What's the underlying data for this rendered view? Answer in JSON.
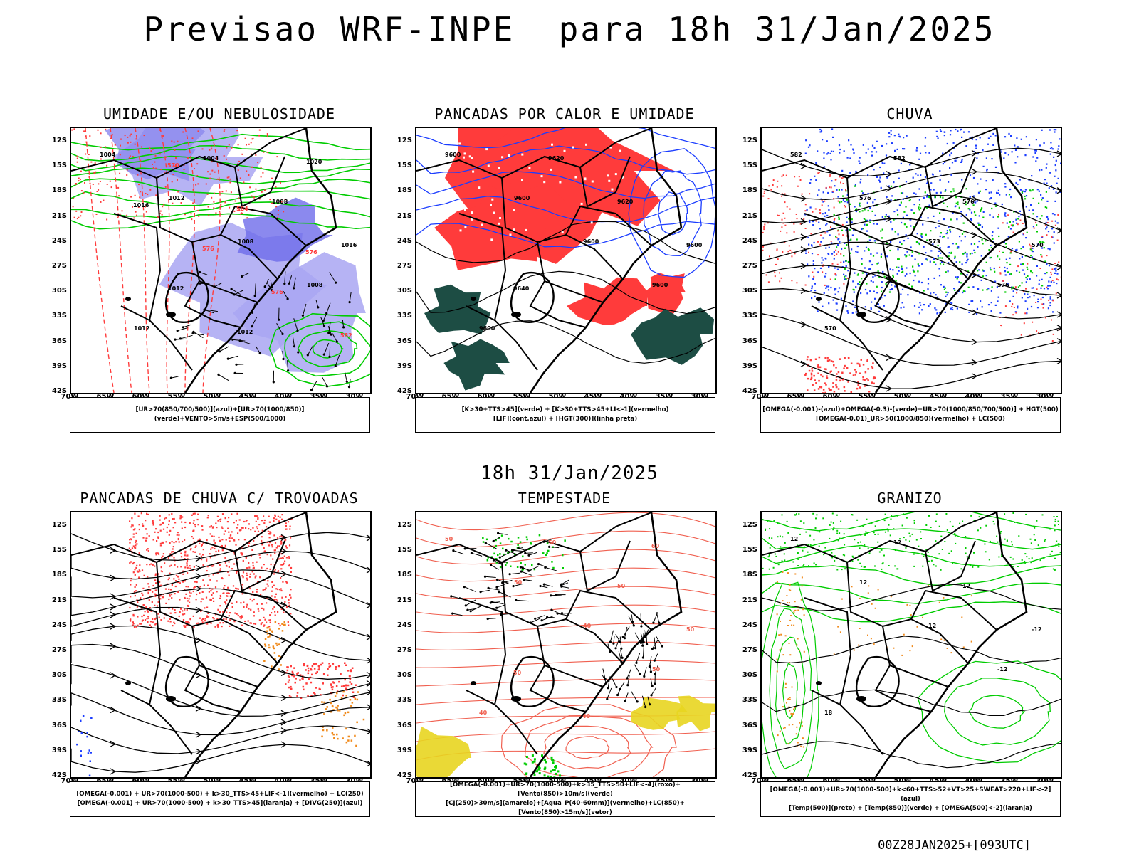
{
  "main_title": "Previsao WRF-INPE  para 18h 31/Jan/2025",
  "mid_title": "18h 31/Jan/2025",
  "footer": "00Z28JAN2025+[093UTC]",
  "axis": {
    "y_labels": [
      "12S",
      "15S",
      "18S",
      "21S",
      "24S",
      "27S",
      "30S",
      "33S",
      "36S",
      "39S",
      "42S"
    ],
    "x_labels": [
      "70W",
      "65W",
      "60W",
      "55W",
      "50W",
      "45W",
      "40W",
      "35W",
      "30W"
    ]
  },
  "colors": {
    "red": "#ff3b3b",
    "green": "#00cc00",
    "blue": "#1a3cff",
    "lavender": "#a9a6f2",
    "orange": "#f08a1c",
    "yellow": "#e8d520",
    "darkgreen": "#1d4d44",
    "salmon": "#f06050"
  },
  "panels": [
    {
      "title": "UMIDADE E/OU NEBULOSIDADE",
      "legend": [
        "[UR>70(850/700/500)](azul)+[UR>70(1000/850)](verde)+VENTO>5m/s+ESP(500/1000)"
      ],
      "labels": [
        "1004",
        "1012",
        "1008",
        "1008",
        "1012",
        "1004",
        "1008",
        "1016",
        "1012",
        "1012",
        "1020",
        "1016",
        "576",
        "576",
        "582",
        "570",
        "584",
        "576"
      ]
    },
    {
      "title": "PANCADAS POR CALOR E UMIDADE",
      "legend": [
        "[K>30+TTS>45](verde) + [K>30+TTS>45+LI<-1](vermelho)",
        "[LIF](cont.azul) + [HGT(300)](linha preta)"
      ],
      "labels": [
        "9600",
        "9600",
        "9600",
        "9600",
        "9600",
        "9620",
        "9620",
        "9600",
        "9640"
      ]
    },
    {
      "title": "CHUVA",
      "legend": [
        "[OMEGA(-0.001)-(azul)+OMEGA(-0.3)-(verde)+UR>70(1000/850/700/500)] + HGT(500)",
        "[OMEGA(-0.01)_UR>50(1000/850)(vermelho) + LC(500)"
      ],
      "labels": [
        "582",
        "576",
        "573",
        "576",
        "570",
        "582",
        "576",
        "570"
      ]
    },
    {
      "title": "PANCADAS DE CHUVA C/ TROVOADAS",
      "legend": [
        "[OMEGA(-0.001) + UR>70(1000-500) + k>30_TTS>45+LIF<-1](vermelho) + LC(250)",
        "[OMEGA(-0.001) + UR>70(1000-500) + k>30_TTS>45](laranja) + [DIVG(250)](azul)"
      ],
      "labels": []
    },
    {
      "title": "TEMPESTADE",
      "legend": [
        "[OMEGA(-0.001)+UR>70(1000-500)+k>35_TTS>50+LIF<-4](roxo)+[Vento(850)>10m/s](verde)",
        "[CJ(250)>30m/s](amarelo)+[Agua_P(40-60mm)](vermelho)+LC(850)+[Vento(850)>15m/s](vetor)"
      ],
      "labels": [
        "50",
        "50",
        "40",
        "50",
        "40",
        "50",
        "50",
        "50",
        "50",
        "40",
        "60"
      ]
    },
    {
      "title": "GRANIZO",
      "legend": [
        "[OMEGA(-0.001)+UR>70(1000-500)+k<60+TTS>52+VT>25+SWEAT>220+LIF<-2](azul)",
        "[Temp(500)](preto) + [Temp(850)](verde) + [OMEGA(500)<-2](laranja)"
      ],
      "labels": [
        "12",
        "12",
        "12",
        "-12",
        "18",
        "12",
        "12",
        "-12"
      ]
    }
  ]
}
